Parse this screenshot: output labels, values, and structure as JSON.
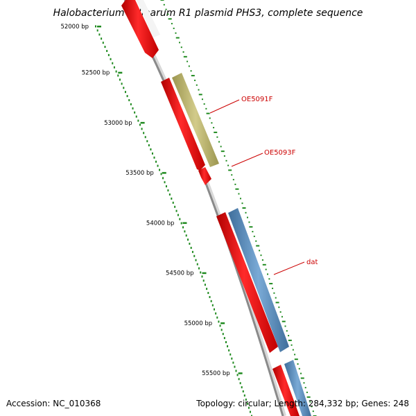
{
  "title": "Halobacterium salinarum R1 plasmid PHS3, complete sequence",
  "footer": {
    "accession": "Accession: NC_010368",
    "summary": "Topology: circular; Length: 284,332 bp; Genes: 248"
  },
  "ruler": {
    "ticks": [
      "52000 bp",
      "52500 bp",
      "53000 bp",
      "53500 bp",
      "54000 bp",
      "54500 bp",
      "55000 bp",
      "55500 bp"
    ]
  },
  "features": [
    {
      "label": "",
      "kind": "cds",
      "strand": "outer",
      "color": "#ff0000"
    },
    {
      "label": "",
      "kind": "cds",
      "strand": "outer",
      "color": "#ff0000"
    },
    {
      "label": "OE5091F",
      "kind": "gene",
      "strand": "outer",
      "color": "#b9b16b"
    },
    {
      "label": "",
      "kind": "cds",
      "strand": "outer",
      "color": "#ff0000"
    },
    {
      "label": "OE5093F",
      "kind": "cds-arrow",
      "strand": "outer",
      "color": "#ff0000"
    },
    {
      "label": "",
      "kind": "cds",
      "strand": "outer",
      "color": "#ff0000"
    },
    {
      "label": "dat",
      "kind": "gene",
      "strand": "outer",
      "color": "#5a8fc0"
    },
    {
      "label": "",
      "kind": "cds",
      "strand": "outer",
      "color": "#ff0000"
    },
    {
      "label": "",
      "kind": "gene",
      "strand": "outer",
      "color": "#5a8fc0"
    }
  ],
  "colors": {
    "backbone": "#8a8a8a",
    "cds": "#ff0000",
    "gene_blue": "#5a8fc0",
    "gene_olive": "#b9b16b",
    "tick_green": "#1f8a1f",
    "label_red": "#cc0000"
  }
}
